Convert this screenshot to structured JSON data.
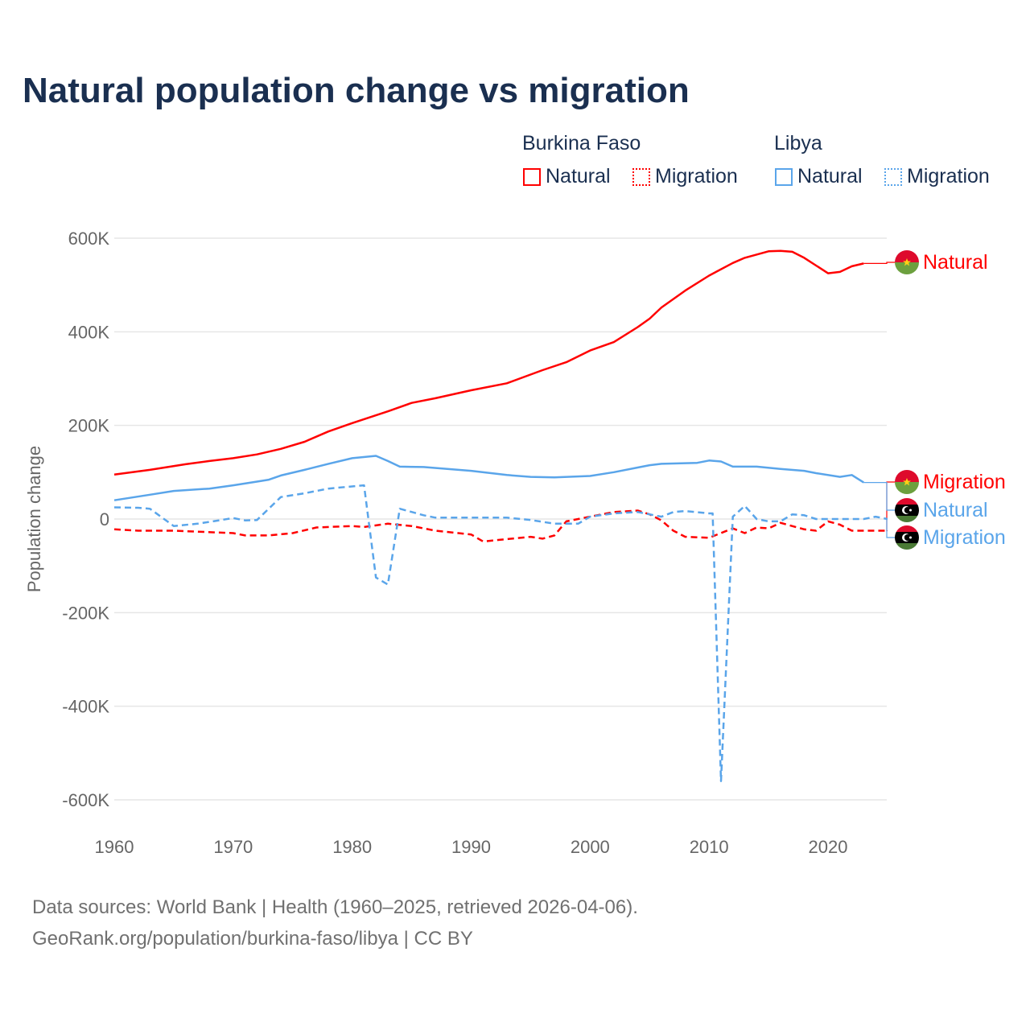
{
  "title": "Natural population change vs migration",
  "legend": {
    "groups": [
      {
        "country": "Burkina Faso",
        "items": [
          "Natural",
          "Migration"
        ]
      },
      {
        "country": "Libya",
        "items": [
          "Natural",
          "Migration"
        ]
      }
    ]
  },
  "source": {
    "line1": "Data sources: World Bank | Health (1960–2025, retrieved 2026-04-06).",
    "line2": "GeoRank.org/population/burkina-faso/libya | CC BY"
  },
  "colors": {
    "burkina": "#ff0000",
    "libya": "#5aa5ea"
  },
  "chart_data": {
    "type": "line",
    "ylabel": "Population change",
    "ylim": [
      -600,
      600
    ],
    "y_unit": "thousands",
    "yticks": [
      600,
      400,
      200,
      0,
      -200,
      -400,
      -600
    ],
    "ytick_labels": [
      "600K",
      "400K",
      "200K",
      "0",
      "-200K",
      "-400K",
      "-600K"
    ],
    "xlim": [
      1960,
      2025
    ],
    "xticks": [
      1960,
      1970,
      1980,
      1990,
      2000,
      2010,
      2020
    ],
    "xtick_labels": [
      "1960",
      "1970",
      "1980",
      "1990",
      "2000",
      "2010",
      "2020"
    ],
    "grid": true,
    "series": [
      {
        "name": "Burkina Faso Natural",
        "label": "Natural",
        "country": "burkina",
        "dash": false,
        "points": [
          [
            1960,
            95
          ],
          [
            1963,
            105
          ],
          [
            1966,
            117
          ],
          [
            1968,
            124
          ],
          [
            1970,
            130
          ],
          [
            1972,
            138
          ],
          [
            1974,
            150
          ],
          [
            1976,
            165
          ],
          [
            1978,
            187
          ],
          [
            1980,
            205
          ],
          [
            1983,
            230
          ],
          [
            1985,
            248
          ],
          [
            1987,
            258
          ],
          [
            1990,
            275
          ],
          [
            1993,
            290
          ],
          [
            1996,
            318
          ],
          [
            1998,
            335
          ],
          [
            2000,
            360
          ],
          [
            2002,
            378
          ],
          [
            2004,
            410
          ],
          [
            2005,
            428
          ],
          [
            2006,
            452
          ],
          [
            2008,
            488
          ],
          [
            2010,
            520
          ],
          [
            2012,
            547
          ],
          [
            2013,
            558
          ],
          [
            2015,
            572
          ],
          [
            2016,
            573
          ],
          [
            2017,
            571
          ],
          [
            2018,
            558
          ],
          [
            2020,
            525
          ],
          [
            2021,
            528
          ],
          [
            2022,
            540
          ],
          [
            2023,
            546
          ]
        ]
      },
      {
        "name": "Burkina Faso Migration",
        "label": "Migration",
        "country": "burkina",
        "dash": true,
        "points": [
          [
            1960,
            -22
          ],
          [
            1962,
            -25
          ],
          [
            1965,
            -25
          ],
          [
            1970,
            -30
          ],
          [
            1971,
            -35
          ],
          [
            1973,
            -35
          ],
          [
            1975,
            -30
          ],
          [
            1977,
            -18
          ],
          [
            1980,
            -15
          ],
          [
            1981,
            -17
          ],
          [
            1983,
            -10
          ],
          [
            1985,
            -15
          ],
          [
            1987,
            -25
          ],
          [
            1990,
            -33
          ],
          [
            1991,
            -48
          ],
          [
            1993,
            -43
          ],
          [
            1995,
            -38
          ],
          [
            1996,
            -42
          ],
          [
            1997,
            -35
          ],
          [
            1998,
            -5
          ],
          [
            2000,
            5
          ],
          [
            2002,
            15
          ],
          [
            2004,
            18
          ],
          [
            2005,
            10
          ],
          [
            2006,
            -3
          ],
          [
            2007,
            -25
          ],
          [
            2008,
            -38
          ],
          [
            2010,
            -40
          ],
          [
            2012,
            -20
          ],
          [
            2013,
            -30
          ],
          [
            2014,
            -18
          ],
          [
            2015,
            -20
          ],
          [
            2016,
            -8
          ],
          [
            2018,
            -22
          ],
          [
            2019,
            -25
          ],
          [
            2020,
            -5
          ],
          [
            2021,
            -12
          ],
          [
            2022,
            -25
          ],
          [
            2025,
            -25
          ]
        ]
      },
      {
        "name": "Libya Natural",
        "label": "Natural",
        "country": "libya",
        "dash": false,
        "points": [
          [
            1960,
            40
          ],
          [
            1963,
            52
          ],
          [
            1965,
            60
          ],
          [
            1968,
            65
          ],
          [
            1970,
            72
          ],
          [
            1972,
            80
          ],
          [
            1973,
            84
          ],
          [
            1974,
            93
          ],
          [
            1976,
            105
          ],
          [
            1978,
            118
          ],
          [
            1980,
            130
          ],
          [
            1982,
            135
          ],
          [
            1983,
            124
          ],
          [
            1984,
            112
          ],
          [
            1986,
            111
          ],
          [
            1990,
            103
          ],
          [
            1993,
            94
          ],
          [
            1995,
            90
          ],
          [
            1997,
            89
          ],
          [
            2000,
            92
          ],
          [
            2002,
            100
          ],
          [
            2004,
            110
          ],
          [
            2005,
            115
          ],
          [
            2006,
            118
          ],
          [
            2009,
            120
          ],
          [
            2010,
            125
          ],
          [
            2011,
            123
          ],
          [
            2012,
            112
          ],
          [
            2014,
            112
          ],
          [
            2016,
            107
          ],
          [
            2018,
            103
          ],
          [
            2019,
            98
          ],
          [
            2021,
            90
          ],
          [
            2022,
            94
          ],
          [
            2023,
            78
          ]
        ]
      },
      {
        "name": "Libya Migration",
        "label": "Migration",
        "country": "libya",
        "dash": true,
        "points": [
          [
            1960,
            25
          ],
          [
            1962,
            24
          ],
          [
            1963,
            22
          ],
          [
            1965,
            -15
          ],
          [
            1967,
            -10
          ],
          [
            1969,
            -2
          ],
          [
            1970,
            2
          ],
          [
            1971,
            -3
          ],
          [
            1972,
            -2
          ],
          [
            1974,
            47
          ],
          [
            1976,
            55
          ],
          [
            1978,
            65
          ],
          [
            1981,
            72
          ],
          [
            1982,
            -125
          ],
          [
            1983,
            -140
          ],
          [
            1984,
            22
          ],
          [
            1986,
            8
          ],
          [
            1987,
            3
          ],
          [
            1993,
            3
          ],
          [
            1995,
            -2
          ],
          [
            1997,
            -10
          ],
          [
            1999,
            -10
          ],
          [
            2000,
            5
          ],
          [
            2002,
            12
          ],
          [
            2004,
            15
          ],
          [
            2006,
            5
          ],
          [
            2007,
            15
          ],
          [
            2008,
            17
          ],
          [
            2010,
            12
          ],
          [
            2010.3,
            12
          ],
          [
            2011,
            -560
          ],
          [
            2012,
            5
          ],
          [
            2013,
            28
          ],
          [
            2014,
            0
          ],
          [
            2015,
            -5
          ],
          [
            2016,
            -5
          ],
          [
            2017,
            10
          ],
          [
            2018,
            8
          ],
          [
            2019,
            0
          ],
          [
            2023,
            0
          ],
          [
            2024,
            5
          ],
          [
            2025,
            0
          ]
        ]
      }
    ]
  }
}
